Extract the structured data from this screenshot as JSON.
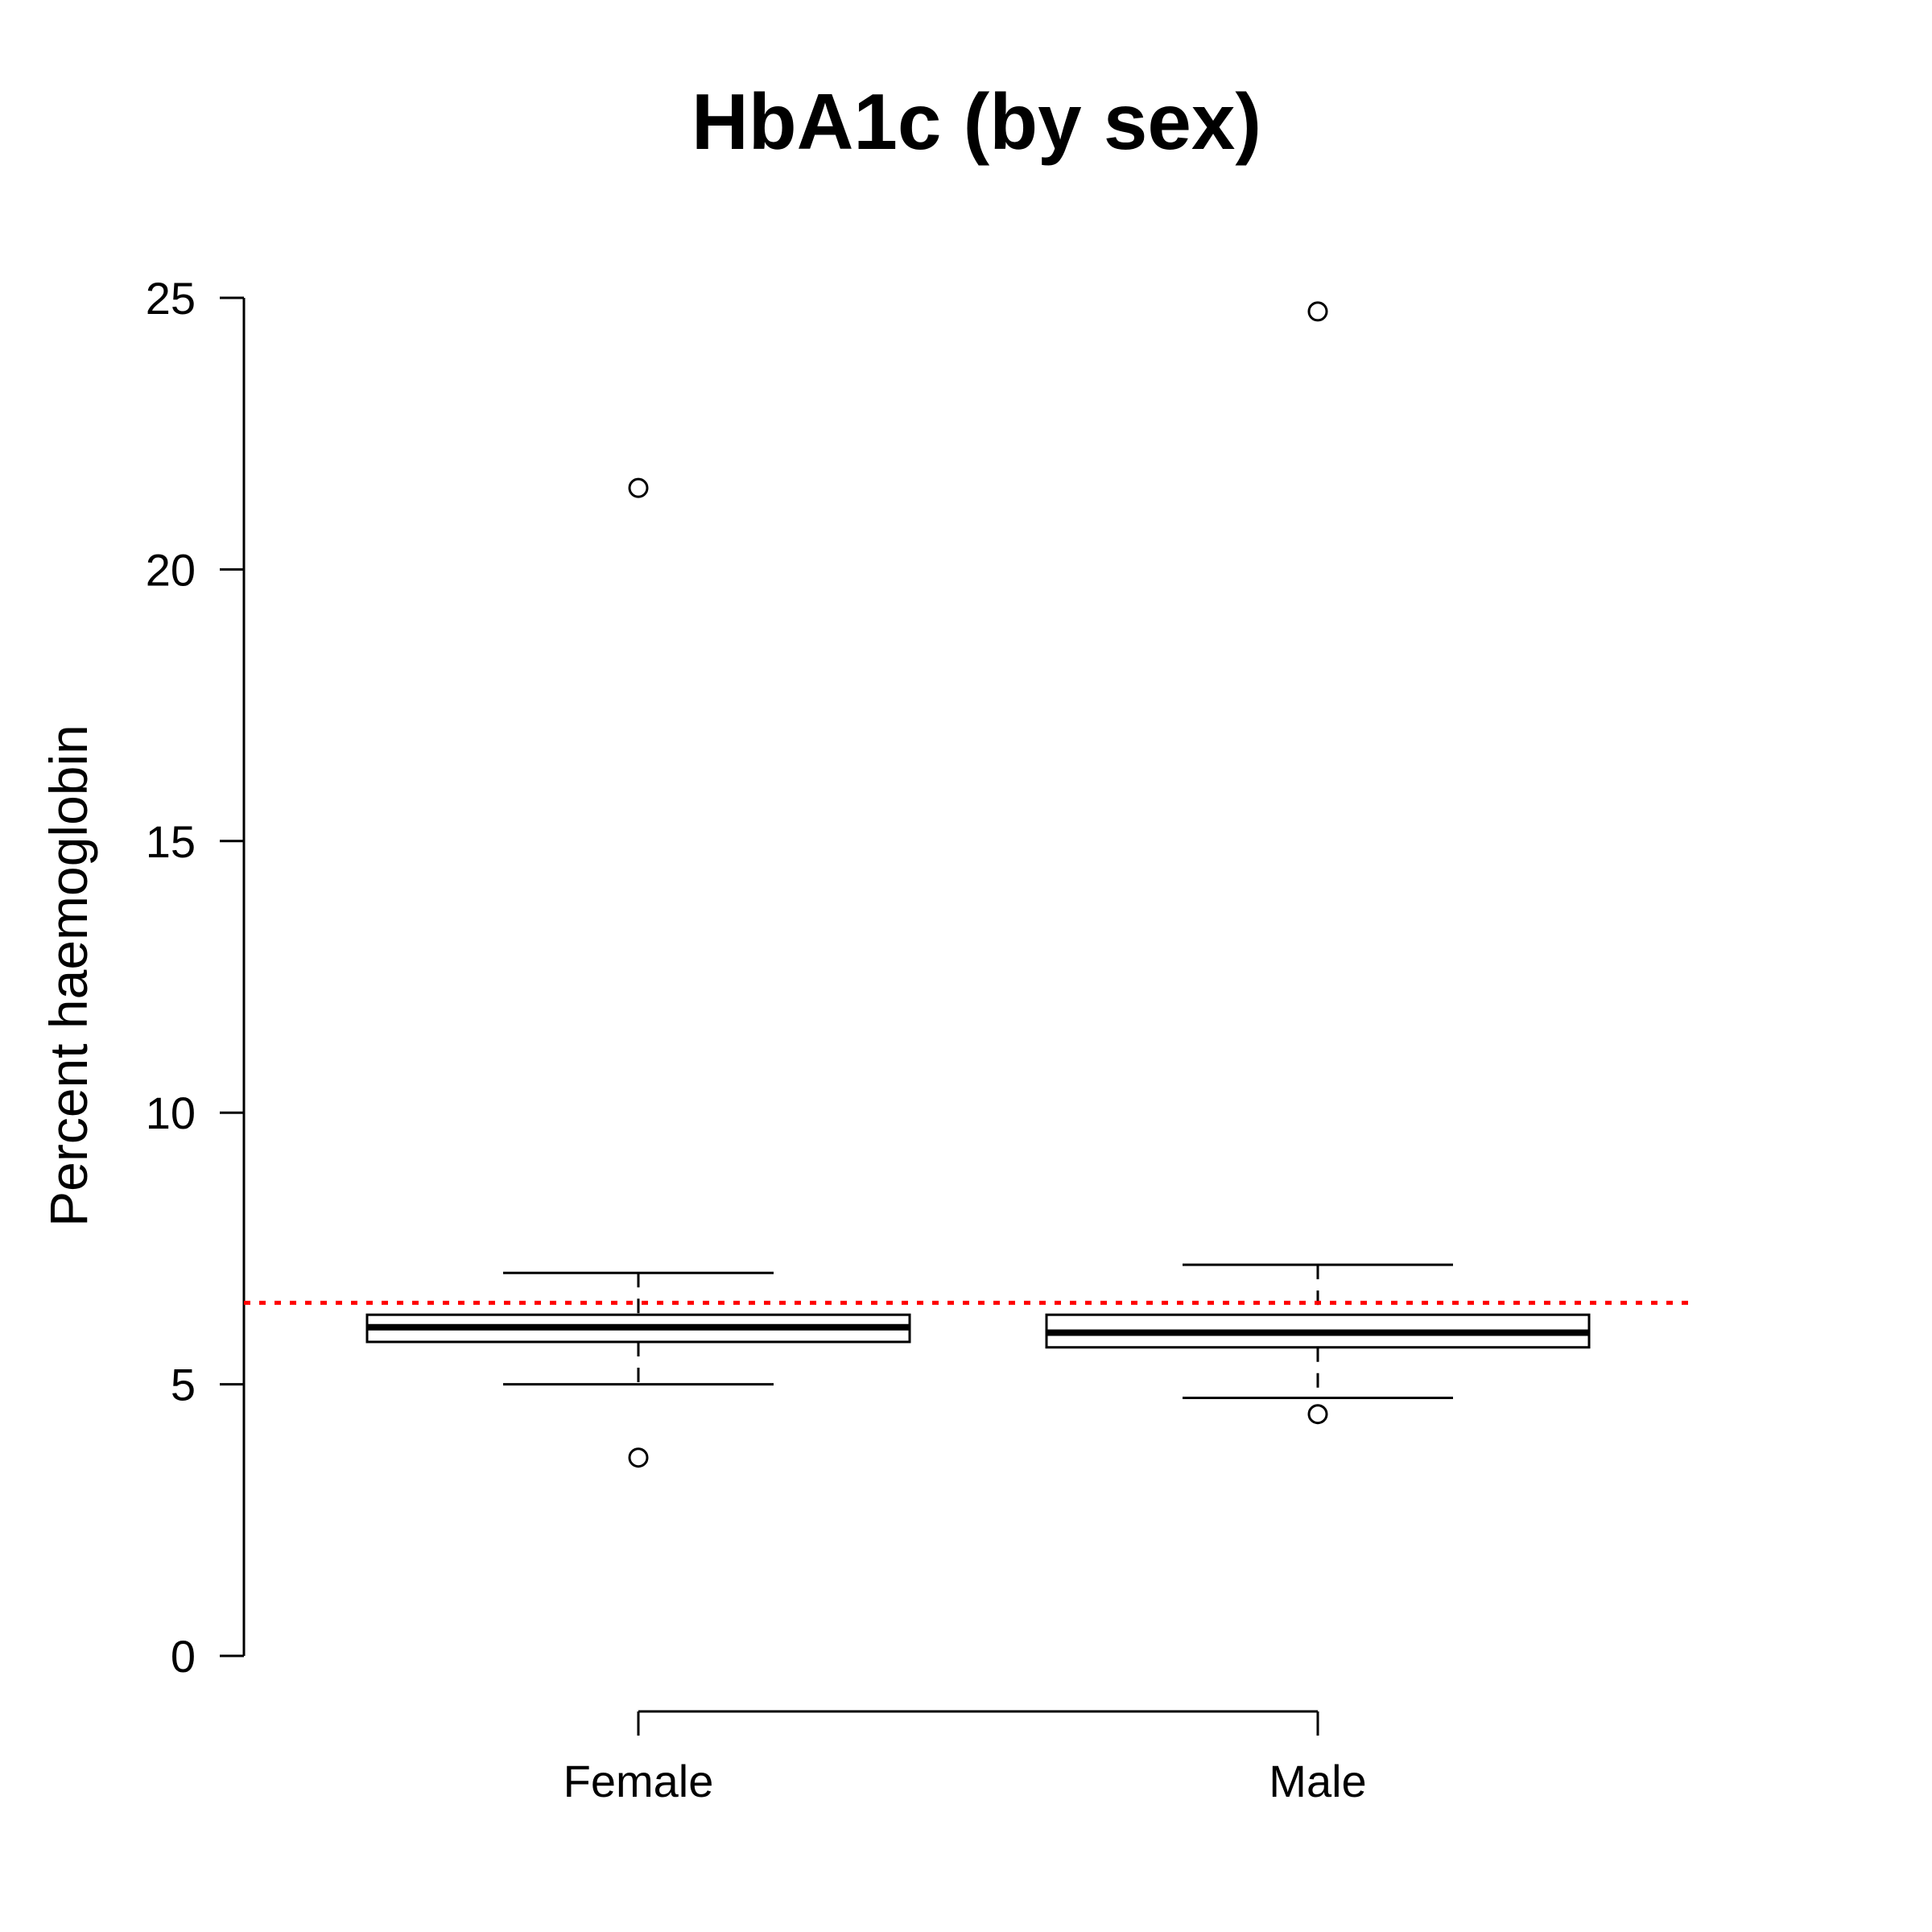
{
  "chart_data": {
    "type": "boxplot",
    "title": "HbA1c (by sex)",
    "xlabel": "",
    "ylabel": "Percent haemoglobin",
    "ylim": [
      0,
      25
    ],
    "yticks": [
      0,
      5,
      10,
      15,
      20,
      25
    ],
    "categories": [
      "Female",
      "Male"
    ],
    "boxes": [
      {
        "name": "Female",
        "whisker_low": 5.0,
        "q1": 5.78,
        "median": 6.05,
        "q3": 6.28,
        "whisker_high": 7.05,
        "outliers": [
          3.65,
          21.5
        ]
      },
      {
        "name": "Male",
        "whisker_low": 4.75,
        "q1": 5.68,
        "median": 5.95,
        "q3": 6.28,
        "whisker_high": 7.2,
        "outliers": [
          4.45,
          24.75
        ]
      }
    ],
    "reference_line": {
      "y": 6.5,
      "color": "#ff0000",
      "style": "dotted"
    },
    "grid": false,
    "colors": {
      "box": "#000000",
      "reference": "#ff0000"
    }
  }
}
